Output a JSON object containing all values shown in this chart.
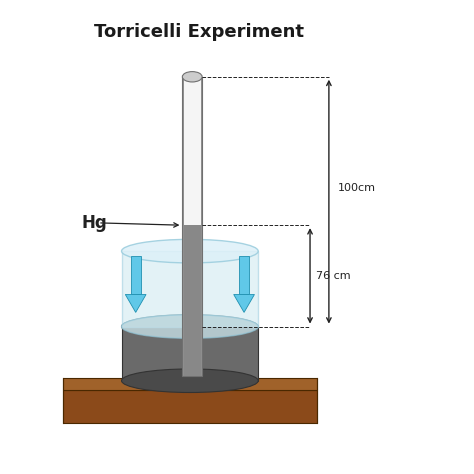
{
  "title": "Torricelli Experiment",
  "title_fontsize": 13,
  "title_fontweight": "bold",
  "bg_color": "#ffffff",
  "wood_color_front": "#8B4A1A",
  "wood_color_top": "#A0622A",
  "wood_color_side": "#6B3510",
  "dish_body_color": "#6a6a6a",
  "dish_top_color": "#808080",
  "dish_bottom_color": "#505050",
  "glass_fill": "#cce8f0",
  "glass_edge": "#99ccdd",
  "tube_light": "#e8e8e8",
  "tube_mid": "#b0b0b0",
  "tube_dark": "#888888",
  "mercury_color": "#808080",
  "vacuum_color": "#f8f8f8",
  "arrow_blue": "#60c8e8",
  "arrow_blue_edge": "#2090b0",
  "dim_color": "#222222",
  "hg_label": "Hg",
  "label_76": "76 cm",
  "label_100": "100cm"
}
